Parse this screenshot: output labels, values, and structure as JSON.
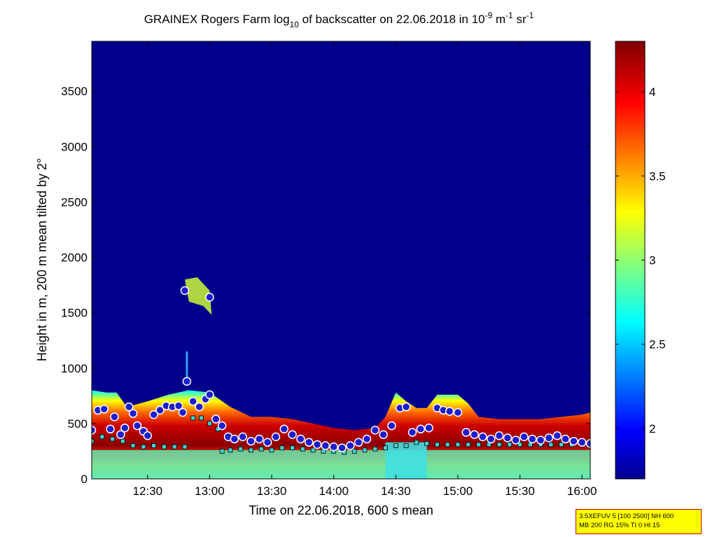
{
  "title": {
    "prefix": "GRAINEX Rogers Farm log",
    "sub": "10",
    "mid": " of backscatter on 22.06.2018 in 10",
    "sup1": "-9",
    "m": " m",
    "sup2": "-1",
    "sr": " sr",
    "sup3": "-1"
  },
  "info_box": {
    "line1": "3.5XEFUV 5 [100 2500] NH 600",
    "line2": "MB 200 RG 15% TI 0 HI 15"
  },
  "colors": {
    "background_low": "#00008b",
    "aerosol_layer_high": "#8b0000",
    "cloud_base_marker": "#1e1ecc",
    "layer_marker": "#40d0d0"
  },
  "chart_data": {
    "type": "heatmap",
    "title": "GRAINEX Rogers Farm log10 of backscatter on 22.06.2018 in 10^-9 m^-1 sr^-1",
    "xlabel": "Time on 22.06.2018, 600 s mean",
    "ylabel": "Height in m, 200 m mean tilted by 2°",
    "x_ticks": [
      "12:30",
      "13:00",
      "13:30",
      "14:00",
      "14:30",
      "15:00",
      "15:30",
      "16:00"
    ],
    "x_range": [
      "12:03",
      "16:04"
    ],
    "y_ticks": [
      0,
      500,
      1000,
      1500,
      2000,
      2500,
      3000,
      3500
    ],
    "y_range": [
      0,
      3950
    ],
    "colorbar": {
      "ticks": [
        2,
        2.5,
        3,
        3.5,
        4
      ],
      "range": [
        1.7,
        4.3
      ]
    },
    "cloud_base_points": [
      [
        "12:03",
        440
      ],
      [
        "12:06",
        620
      ],
      [
        "12:09",
        630
      ],
      [
        "12:12",
        450
      ],
      [
        "12:14",
        560
      ],
      [
        "12:17",
        400
      ],
      [
        "12:19",
        460
      ],
      [
        "12:21",
        650
      ],
      [
        "12:23",
        590
      ],
      [
        "12:25",
        480
      ],
      [
        "12:28",
        430
      ],
      [
        "12:30",
        390
      ],
      [
        "12:33",
        580
      ],
      [
        "12:36",
        620
      ],
      [
        "12:39",
        660
      ],
      [
        "12:42",
        650
      ],
      [
        "12:45",
        660
      ],
      [
        "12:47",
        600
      ],
      [
        "12:48",
        1700
      ],
      [
        "12:49",
        880
      ],
      [
        "12:52",
        700
      ],
      [
        "12:55",
        650
      ],
      [
        "12:58",
        720
      ],
      [
        "13:00",
        760
      ],
      [
        "13:00",
        1640
      ],
      [
        "13:03",
        540
      ],
      [
        "13:06",
        480
      ],
      [
        "13:09",
        380
      ],
      [
        "13:12",
        360
      ],
      [
        "13:16",
        380
      ],
      [
        "13:20",
        340
      ],
      [
        "13:24",
        360
      ],
      [
        "13:28",
        330
      ],
      [
        "13:32",
        380
      ],
      [
        "13:36",
        450
      ],
      [
        "13:40",
        400
      ],
      [
        "13:44",
        360
      ],
      [
        "13:48",
        330
      ],
      [
        "13:52",
        310
      ],
      [
        "13:56",
        300
      ],
      [
        "14:00",
        290
      ],
      [
        "14:04",
        280
      ],
      [
        "14:08",
        300
      ],
      [
        "14:12",
        330
      ],
      [
        "14:16",
        360
      ],
      [
        "14:20",
        440
      ],
      [
        "14:24",
        400
      ],
      [
        "14:28",
        480
      ],
      [
        "14:32",
        640
      ],
      [
        "14:35",
        650
      ],
      [
        "14:38",
        420
      ],
      [
        "14:42",
        450
      ],
      [
        "14:46",
        460
      ],
      [
        "14:50",
        640
      ],
      [
        "14:53",
        620
      ],
      [
        "14:56",
        610
      ],
      [
        "15:00",
        600
      ],
      [
        "15:04",
        420
      ],
      [
        "15:08",
        400
      ],
      [
        "15:12",
        380
      ],
      [
        "15:16",
        360
      ],
      [
        "15:20",
        390
      ],
      [
        "15:24",
        370
      ],
      [
        "15:28",
        350
      ],
      [
        "15:32",
        380
      ],
      [
        "15:36",
        360
      ],
      [
        "15:40",
        350
      ],
      [
        "15:44",
        370
      ],
      [
        "15:48",
        390
      ],
      [
        "15:52",
        360
      ],
      [
        "15:56",
        340
      ],
      [
        "16:00",
        330
      ],
      [
        "16:04",
        320
      ]
    ],
    "boundary_layer_points": [
      [
        "12:03",
        340
      ],
      [
        "12:08",
        380
      ],
      [
        "12:13",
        360
      ],
      [
        "12:18",
        340
      ],
      [
        "12:23",
        300
      ],
      [
        "12:28",
        290
      ],
      [
        "12:33",
        300
      ],
      [
        "12:38",
        290
      ],
      [
        "12:43",
        290
      ],
      [
        "12:48",
        290
      ],
      [
        "12:52",
        550
      ],
      [
        "12:56",
        550
      ],
      [
        "13:00",
        500
      ],
      [
        "13:04",
        450
      ],
      [
        "13:06",
        250
      ],
      [
        "13:10",
        260
      ],
      [
        "13:15",
        270
      ],
      [
        "13:20",
        260
      ],
      [
        "13:25",
        270
      ],
      [
        "13:30",
        260
      ],
      [
        "13:35",
        280
      ],
      [
        "13:40",
        280
      ],
      [
        "13:45",
        270
      ],
      [
        "13:50",
        260
      ],
      [
        "13:55",
        250
      ],
      [
        "14:00",
        250
      ],
      [
        "14:05",
        240
      ],
      [
        "14:10",
        250
      ],
      [
        "14:15",
        260
      ],
      [
        "14:20",
        270
      ],
      [
        "14:25",
        280
      ],
      [
        "14:30",
        300
      ],
      [
        "14:35",
        300
      ],
      [
        "14:40",
        330
      ],
      [
        "14:45",
        320
      ],
      [
        "14:50",
        310
      ],
      [
        "14:55",
        310
      ],
      [
        "15:00",
        310
      ],
      [
        "15:05",
        310
      ],
      [
        "15:10",
        310
      ],
      [
        "15:15",
        310
      ],
      [
        "15:20",
        310
      ],
      [
        "15:25",
        310
      ],
      [
        "15:30",
        310
      ],
      [
        "15:35",
        310
      ],
      [
        "15:40",
        310
      ],
      [
        "15:45",
        310
      ],
      [
        "15:50",
        310
      ],
      [
        "15:55",
        310
      ],
      [
        "16:00",
        310
      ],
      [
        "16:04",
        300
      ]
    ],
    "layer_top_profile": [
      [
        "12:03",
        800
      ],
      [
        "12:10",
        780
      ],
      [
        "12:15",
        780
      ],
      [
        "12:20",
        650
      ],
      [
        "12:30",
        700
      ],
      [
        "12:40",
        760
      ],
      [
        "12:50",
        800
      ],
      [
        "13:00",
        780
      ],
      [
        "13:10",
        650
      ],
      [
        "13:20",
        560
      ],
      [
        "13:30",
        560
      ],
      [
        "13:40",
        540
      ],
      [
        "13:50",
        500
      ],
      [
        "14:00",
        460
      ],
      [
        "14:10",
        440
      ],
      [
        "14:20",
        460
      ],
      [
        "14:25",
        560
      ],
      [
        "14:30",
        780
      ],
      [
        "14:35",
        700
      ],
      [
        "14:40",
        640
      ],
      [
        "14:45",
        640
      ],
      [
        "14:50",
        760
      ],
      [
        "15:00",
        760
      ],
      [
        "15:05",
        680
      ],
      [
        "15:10",
        560
      ],
      [
        "15:20",
        540
      ],
      [
        "15:30",
        540
      ],
      [
        "15:40",
        540
      ],
      [
        "15:50",
        560
      ],
      [
        "16:00",
        580
      ],
      [
        "16:04",
        600
      ]
    ],
    "grid": false,
    "legend": "none"
  }
}
